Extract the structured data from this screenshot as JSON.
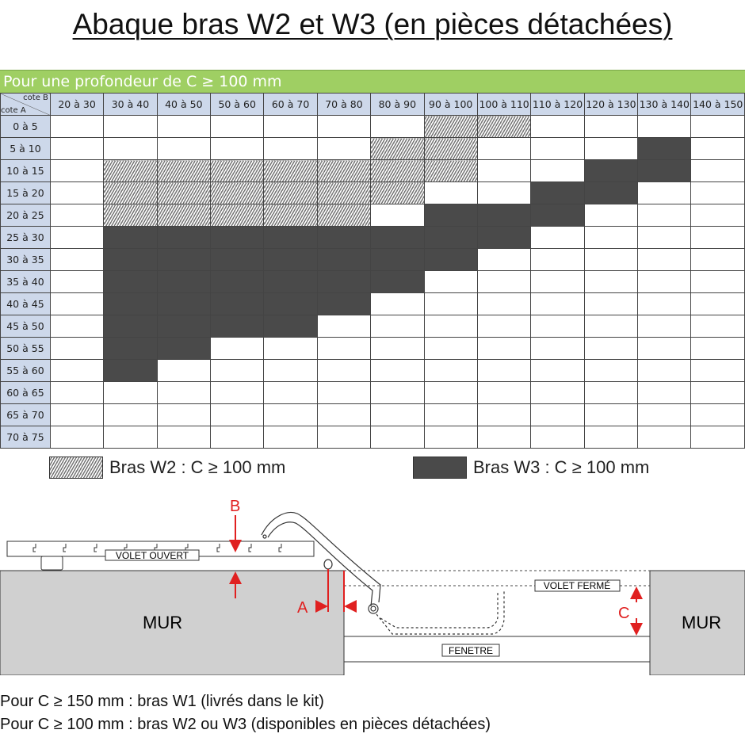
{
  "title": "Abaque bras W2 et W3 (en pièces détachées)",
  "banner": "Pour une profondeur de C ≥ 100 mm",
  "table": {
    "corner_col_label": "cote B",
    "corner_row_label": "cote A",
    "columns": [
      "20 à 30",
      "30 à 40",
      "40 à 50",
      "50 à 60",
      "60 à 70",
      "70 à 80",
      "80 à 90",
      "90 à 100",
      "100 à 110",
      "110 à 120",
      "120 à 130",
      "130 à 140",
      "140 à 150"
    ],
    "rows": [
      {
        "label": "0 à 5",
        "cells": [
          "",
          "",
          "",
          "",
          "",
          "",
          "",
          "W2",
          "W2",
          "",
          "",
          "",
          ""
        ]
      },
      {
        "label": "5 à 10",
        "cells": [
          "",
          "",
          "",
          "",
          "",
          "",
          "W2",
          "W2",
          "",
          "",
          "",
          "W3",
          ""
        ]
      },
      {
        "label": "10 à 15",
        "cells": [
          "",
          "W2",
          "W2",
          "W2",
          "W2",
          "W2",
          "W2",
          "W2",
          "",
          "",
          "W3",
          "W3",
          ""
        ]
      },
      {
        "label": "15 à 20",
        "cells": [
          "",
          "W2",
          "W2",
          "W2",
          "W2",
          "W2",
          "W2",
          "",
          "",
          "W3",
          "W3",
          "",
          ""
        ]
      },
      {
        "label": "20 à 25",
        "cells": [
          "",
          "W2",
          "W2",
          "W2",
          "W2",
          "W2",
          "",
          "W3",
          "W3",
          "W3",
          "",
          "",
          ""
        ]
      },
      {
        "label": "25 à 30",
        "cells": [
          "",
          "W3",
          "W3",
          "W3",
          "W3",
          "W3",
          "W3",
          "W3",
          "W3",
          "",
          "",
          "",
          ""
        ]
      },
      {
        "label": "30 à 35",
        "cells": [
          "",
          "W3",
          "W3",
          "W3",
          "W3",
          "W3",
          "W3",
          "W3",
          "",
          "",
          "",
          "",
          ""
        ]
      },
      {
        "label": "35 à 40",
        "cells": [
          "",
          "W3",
          "W3",
          "W3",
          "W3",
          "W3",
          "W3",
          "",
          "",
          "",
          "",
          "",
          ""
        ]
      },
      {
        "label": "40 à 45",
        "cells": [
          "",
          "W3",
          "W3",
          "W3",
          "W3",
          "W3",
          "",
          "",
          "",
          "",
          "",
          "",
          ""
        ]
      },
      {
        "label": "45 à 50",
        "cells": [
          "",
          "W3",
          "W3",
          "W3",
          "W3",
          "",
          "",
          "",
          "",
          "",
          "",
          "",
          ""
        ]
      },
      {
        "label": "50 à 55",
        "cells": [
          "",
          "W3",
          "W3",
          "",
          "",
          "",
          "",
          "",
          "",
          "",
          "",
          "",
          ""
        ]
      },
      {
        "label": "55 à 60",
        "cells": [
          "",
          "W3",
          "",
          "",
          "",
          "",
          "",
          "",
          "",
          "",
          "",
          "",
          ""
        ]
      },
      {
        "label": "60 à 65",
        "cells": [
          "",
          "",
          "",
          "",
          "",
          "",
          "",
          "",
          "",
          "",
          "",
          "",
          ""
        ]
      },
      {
        "label": "65 à 70",
        "cells": [
          "",
          "",
          "",
          "",
          "",
          "",
          "",
          "",
          "",
          "",
          "",
          "",
          ""
        ]
      },
      {
        "label": "70 à 75",
        "cells": [
          "",
          "",
          "",
          "",
          "",
          "",
          "",
          "",
          "",
          "",
          "",
          "",
          ""
        ]
      }
    ]
  },
  "legend": {
    "w2": "Bras W2 : C ≥ 100 mm",
    "w3": "Bras W3 : C ≥ 100 mm"
  },
  "diagram": {
    "label_b": "B",
    "label_a": "A",
    "label_c": "C",
    "volet_ouvert": "VOLET OUVERT",
    "volet_ferme": "VOLET FERMÉ",
    "fenetre": "FENETRE",
    "mur_left": "MUR",
    "mur_right": "MUR"
  },
  "footer": [
    "Pour C ≥ 150 mm : bras W1 (livrés dans le kit)",
    "Pour C ≥ 100 mm : bras W2 ou W3 (disponibles en pièces détachées)"
  ],
  "colors": {
    "banner": "#9fcf63",
    "header": "#cdd8ea",
    "w3": "#4a4a4a",
    "wall": "#d0d0d0",
    "dimension": "#e02020"
  }
}
